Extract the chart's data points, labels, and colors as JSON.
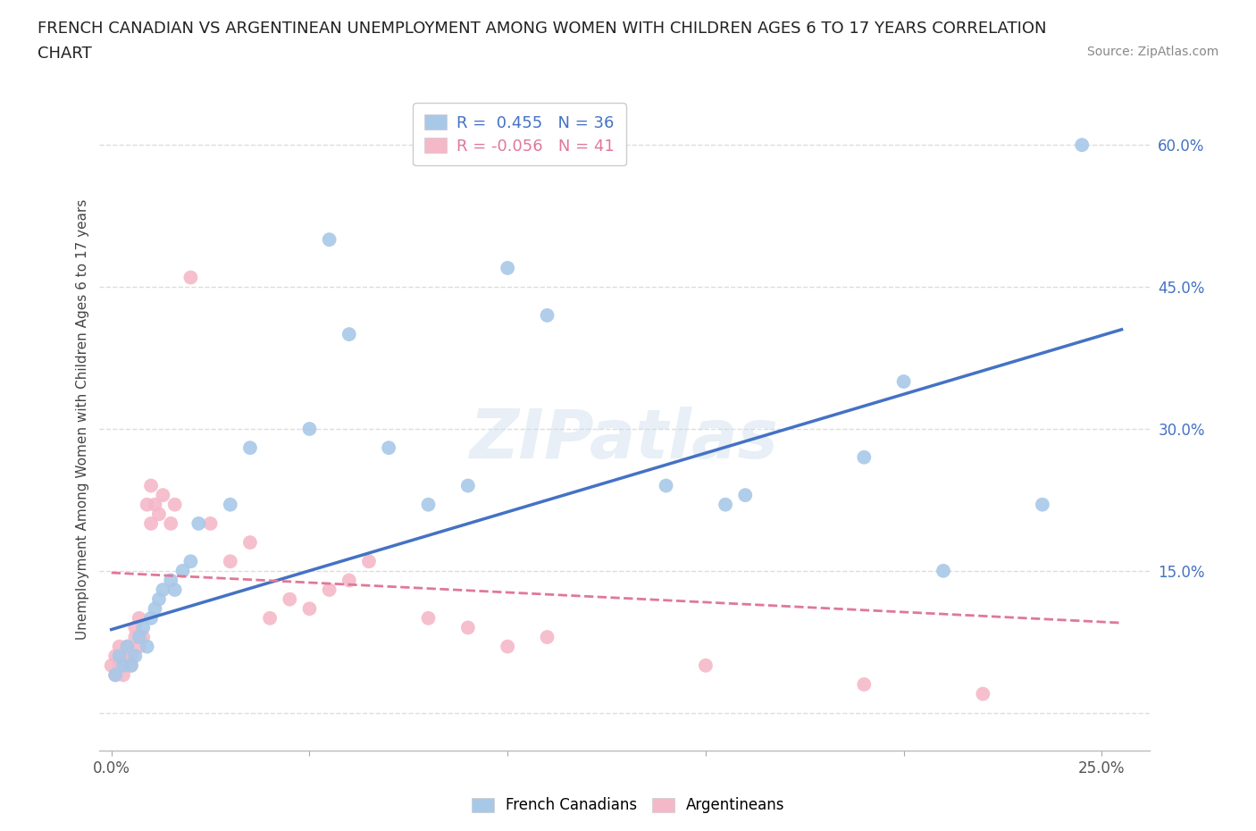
{
  "title_line1": "FRENCH CANADIAN VS ARGENTINEAN UNEMPLOYMENT AMONG WOMEN WITH CHILDREN AGES 6 TO 17 YEARS CORRELATION",
  "title_line2": "CHART",
  "source": "Source: ZipAtlas.com",
  "ylabel": "Unemployment Among Women with Children Ages 6 to 17 years",
  "xlim": [
    -0.003,
    0.262
  ],
  "ylim": [
    -0.04,
    0.66
  ],
  "blue_R": 0.455,
  "blue_N": 36,
  "pink_R": -0.056,
  "pink_N": 41,
  "blue_color": "#a8c8e8",
  "pink_color": "#f5b8c8",
  "blue_line_color": "#4472c4",
  "pink_line_color": "#e07898",
  "watermark": "ZIPatlas",
  "legend_label_blue": "French Canadians",
  "legend_label_pink": "Argentineans",
  "blue_scatter_x": [
    0.001,
    0.002,
    0.003,
    0.004,
    0.005,
    0.006,
    0.007,
    0.008,
    0.009,
    0.01,
    0.011,
    0.012,
    0.013,
    0.015,
    0.016,
    0.018,
    0.02,
    0.022,
    0.03,
    0.035,
    0.05,
    0.055,
    0.06,
    0.07,
    0.08,
    0.09,
    0.1,
    0.11,
    0.14,
    0.155,
    0.16,
    0.19,
    0.2,
    0.21,
    0.235,
    0.245
  ],
  "blue_scatter_y": [
    0.04,
    0.06,
    0.05,
    0.07,
    0.05,
    0.06,
    0.08,
    0.09,
    0.07,
    0.1,
    0.11,
    0.12,
    0.13,
    0.14,
    0.13,
    0.15,
    0.16,
    0.2,
    0.22,
    0.28,
    0.3,
    0.5,
    0.4,
    0.28,
    0.22,
    0.24,
    0.47,
    0.42,
    0.24,
    0.22,
    0.23,
    0.27,
    0.35,
    0.15,
    0.22,
    0.6
  ],
  "pink_scatter_x": [
    0.0,
    0.001,
    0.001,
    0.002,
    0.002,
    0.003,
    0.003,
    0.004,
    0.004,
    0.005,
    0.005,
    0.006,
    0.006,
    0.007,
    0.007,
    0.008,
    0.009,
    0.01,
    0.01,
    0.011,
    0.012,
    0.013,
    0.015,
    0.016,
    0.02,
    0.025,
    0.03,
    0.035,
    0.04,
    0.045,
    0.05,
    0.055,
    0.06,
    0.065,
    0.08,
    0.09,
    0.1,
    0.11,
    0.15,
    0.19,
    0.22
  ],
  "pink_scatter_y": [
    0.05,
    0.04,
    0.06,
    0.05,
    0.07,
    0.04,
    0.06,
    0.05,
    0.07,
    0.05,
    0.06,
    0.08,
    0.09,
    0.07,
    0.1,
    0.08,
    0.22,
    0.2,
    0.24,
    0.22,
    0.21,
    0.23,
    0.2,
    0.22,
    0.46,
    0.2,
    0.16,
    0.18,
    0.1,
    0.12,
    0.11,
    0.13,
    0.14,
    0.16,
    0.1,
    0.09,
    0.07,
    0.08,
    0.05,
    0.03,
    0.02
  ],
  "blue_line_x0": 0.0,
  "blue_line_y0": 0.088,
  "blue_line_x1": 0.255,
  "blue_line_y1": 0.405,
  "pink_line_x0": 0.0,
  "pink_line_y0": 0.148,
  "pink_line_x1": 0.255,
  "pink_line_y1": 0.095,
  "grid_color": "#dddddd",
  "background_color": "#ffffff"
}
